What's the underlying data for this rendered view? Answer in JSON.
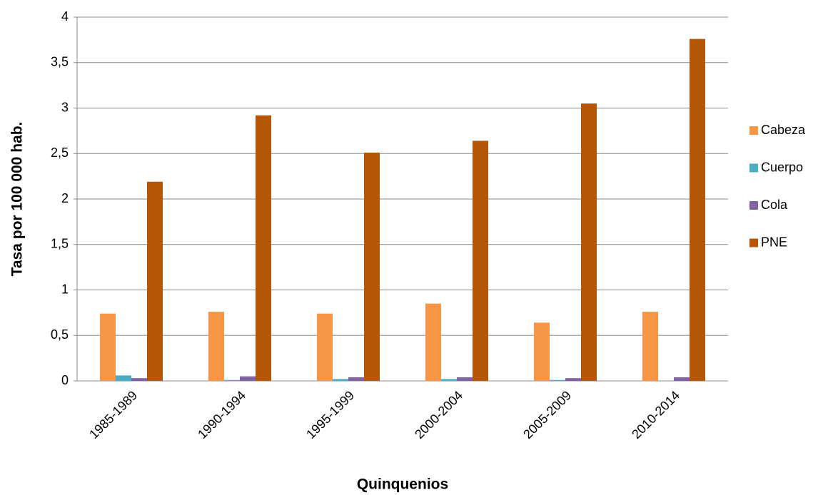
{
  "chart_data": {
    "type": "bar",
    "x_label": "Quinquenios",
    "y_label": "Tasa por 100 000 hab.",
    "categories": [
      "1985-1989",
      "1990-1994",
      "1995-1999",
      "2000-2004",
      "2005-2009",
      "2010-2014"
    ],
    "series": [
      {
        "name": "Cabeza",
        "color": "#f79646",
        "values": [
          0.74,
          0.76,
          0.74,
          0.85,
          0.64,
          0.76
        ]
      },
      {
        "name": "Cuerpo",
        "color": "#4bacc6",
        "values": [
          0.06,
          0.01,
          0.02,
          0.02,
          0.01,
          0
        ]
      },
      {
        "name": "Cola",
        "color": "#8064a2",
        "values": [
          0.03,
          0.05,
          0.04,
          0.04,
          0.03,
          0.04
        ]
      },
      {
        "name": "PNE",
        "color": "#b65708",
        "values": [
          2.19,
          2.92,
          2.51,
          2.64,
          3.05,
          3.76
        ]
      }
    ],
    "ylim": [
      0,
      4
    ],
    "yticks": [
      0,
      {
        "value": 0.5,
        "label": "0,5"
      },
      1,
      {
        "value": 1.5,
        "label": "1,5"
      },
      2,
      {
        "value": 2.5,
        "label": "2,5"
      },
      3,
      {
        "value": 3.5,
        "label": "3,5"
      },
      4
    ],
    "grid": true,
    "legend": "right"
  }
}
